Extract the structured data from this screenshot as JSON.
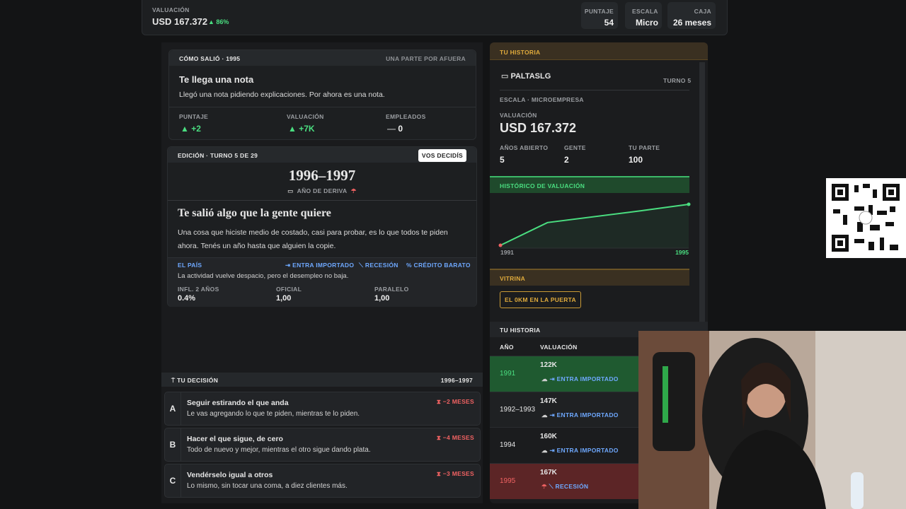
{
  "topbar": {
    "valuation_label": "VALUACIÓN",
    "valuation": "USD 167.372",
    "change": "86%",
    "stats": [
      {
        "label": "PUNTAJE",
        "value": "54"
      },
      {
        "label": "ESCALA",
        "value": "Micro"
      },
      {
        "label": "CAJA",
        "value": "26 meses"
      }
    ]
  },
  "outcome": {
    "header": "CÓMO SALIÓ · 1995",
    "tag": "UNA PARTE POR AFUERA",
    "title": "Te llega una nota",
    "text": "Llegó una nota pidiendo explicaciones. Por ahora es una nota.",
    "stats": [
      {
        "label": "PUNTAJE",
        "value": "+2"
      },
      {
        "label": "VALUACIÓN",
        "value": "+7K"
      },
      {
        "label": "EMPLEADOS",
        "value": "0"
      }
    ]
  },
  "edition": {
    "header": "EDICIÓN · TURNO 5 DE 29",
    "button": "VOS DECIDÍS",
    "years": "1996–1997",
    "year_kind": "AÑO DE DERIVA",
    "headline": "Te salió algo que la gente quiere",
    "body": "Una cosa que hiciste medio de costado, casi para probar, es lo que todos te piden ahora. Tenés un año hasta que alguien la copie.",
    "country_label": "EL PAÍS",
    "tags": [
      "ENTRA IMPORTADO",
      "RECESIÓN",
      "CRÉDITO BARATO"
    ],
    "country_text": "La actividad vuelve despacio, pero el desempleo no baja.",
    "indicators": [
      {
        "label": "INFL. 2 AÑOS",
        "value": "0.4%"
      },
      {
        "label": "OFICIAL",
        "value": "1,00"
      },
      {
        "label": "PARALELO",
        "value": "1,00"
      }
    ]
  },
  "decision": {
    "header": "TU DECISIÓN",
    "years": "1996–1997",
    "options": [
      {
        "key": "A",
        "title": "Seguir estirando el que anda",
        "text": "Le vas agregando lo que te piden, mientras te lo piden.",
        "cost": "−2 MESES"
      },
      {
        "key": "B",
        "title": "Hacer el que sigue, de cero",
        "text": "Todo de nuevo y mejor, mientras el otro sigue dando plata.",
        "cost": "−4 MESES"
      },
      {
        "key": "C",
        "title": "Vendérselo igual a otros",
        "text": "Lo mismo, sin tocar una coma, a diez clientes más.",
        "cost": "−3 MESES"
      }
    ]
  },
  "history": {
    "header": "TU HISTORIA",
    "player": "PALTASLG",
    "turn": "TURNO 5",
    "scale": "ESCALA · MICROEMPRESA",
    "valuation_label": "VALUACIÓN",
    "valuation": "USD 167.372",
    "stats": [
      {
        "label": "AÑOS ABIERTO",
        "value": "5"
      },
      {
        "label": "GENTE",
        "value": "2"
      },
      {
        "label": "TU PARTE",
        "value": "100"
      }
    ],
    "chart_title": "HISTÓRICO DE VALUACIÓN",
    "chart": {
      "type": "line",
      "x": [
        1991,
        1992,
        1994,
        1995
      ],
      "values": [
        122,
        147,
        160,
        167
      ],
      "color": "#4ade80"
    },
    "showcase_title": "VITRINA",
    "showcase_item": "EL 0KM EN LA PUERTA",
    "table_title": "TU HISTORIA",
    "columns": [
      "AÑO",
      "VALUACIÓN"
    ],
    "rows": [
      {
        "year": "1991",
        "valuation": "122K",
        "event": "ENTRA IMPORTADO"
      },
      {
        "year": "1992–1993",
        "valuation": "147K",
        "event": "ENTRA IMPORTADO"
      },
      {
        "year": "1994",
        "valuation": "160K",
        "event": "ENTRA IMPORTADO"
      },
      {
        "year": "1995",
        "valuation": "167K",
        "event": "RECESIÓN"
      }
    ]
  }
}
